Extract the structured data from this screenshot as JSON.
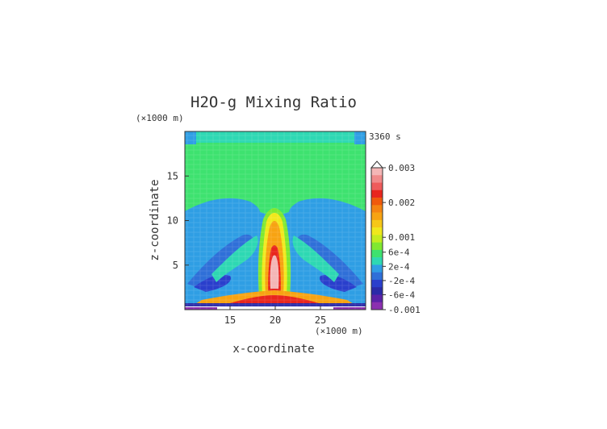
{
  "chart_data": {
    "type": "heatmap",
    "title": "H2O-g Mixing Ratio",
    "time_label": "3360 s",
    "xlabel": "x-coordinate",
    "ylabel": "z-coordinate",
    "x_unit": "(×1000 m)",
    "y_unit": "(×1000 m)",
    "xlim": [
      10,
      30
    ],
    "ylim": [
      0,
      20
    ],
    "x_ticks": [
      15,
      20,
      25
    ],
    "y_ticks": [
      5,
      10,
      15
    ],
    "colorbar": {
      "labels": [
        "0.003",
        "0.002",
        "0.001",
        "6e-4",
        "2e-4",
        "-2e-4",
        "-6e-4",
        "-0.001"
      ],
      "colors": [
        "#f4b6b6",
        "#f08a8a",
        "#ee5b5b",
        "#e8261e",
        "#f05a0c",
        "#f58411",
        "#f7a312",
        "#f6c718",
        "#f0e81c",
        "#c5ec1f",
        "#80e830",
        "#3ee26f",
        "#2ed8b3",
        "#2f9ee4",
        "#2f6fd8",
        "#2a3fcc",
        "#2a2aa8",
        "#5a22a8",
        "#8b2fb0"
      ],
      "top_triangle": true
    },
    "field_description_levels": {
      "background": "#3ee26f",
      "upper_band": "#2ed8b3",
      "mid_blue": "#2f9ee4",
      "dark_blue": "#2f6fd8",
      "plume_yellow": "#f0e81c",
      "plume_orange": "#f7a312",
      "plume_red": "#e8261e",
      "core_pink": "#f4b6b6"
    }
  }
}
